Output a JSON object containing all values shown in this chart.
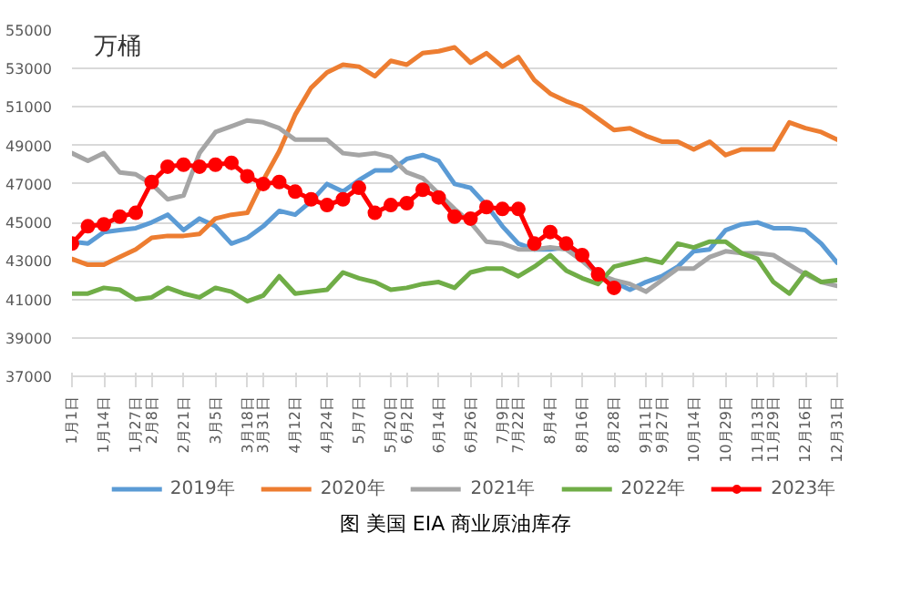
{
  "chart_data": {
    "type": "line",
    "title": "图  美国 EIA 商业原油库存",
    "ylabel": "万桶",
    "categories": [
      "1月1日",
      null,
      "1月14日",
      null,
      "1月27日",
      "2月8日",
      null,
      "2月21日",
      null,
      "3月5日",
      null,
      "3月18日",
      "3月31日",
      null,
      "4月12日",
      null,
      "4月24日",
      null,
      "5月7日",
      null,
      "5月20日",
      "6月2日",
      null,
      "6月14日",
      null,
      "6月26日",
      null,
      "7月9日",
      "7月22日",
      null,
      "8月4日",
      null,
      "8月16日",
      null,
      "8月28日",
      null,
      "9月11日",
      "9月27日",
      null,
      "10月14日",
      null,
      "10月29日",
      null,
      "11月13日",
      "11月29日",
      null,
      "12月16日",
      null,
      "12月31日"
    ],
    "ylim": [
      37000,
      55000
    ],
    "yticks": [
      37000,
      39000,
      41000,
      43000,
      45000,
      47000,
      49000,
      51000,
      53000,
      55000
    ],
    "grid": "y",
    "legend": "bottom",
    "line_style": "solid",
    "series": [
      {
        "name": "2019年",
        "color": "#5b9bd5",
        "marker": "none",
        "values": [
          44000,
          43900,
          44500,
          44600,
          44700,
          45000,
          45400,
          44600,
          45200,
          44800,
          43900,
          44200,
          44800,
          45600,
          45400,
          46100,
          47000,
          46600,
          47200,
          47700,
          47700,
          48300,
          48500,
          48200,
          47000,
          46800,
          45900,
          44800,
          43900,
          43600,
          43600,
          43700,
          43300,
          42300,
          41900,
          41500,
          41900,
          42200,
          42700,
          43500,
          43600,
          44600,
          44900,
          45000,
          44700,
          44700,
          44600,
          43900,
          42900
        ]
      },
      {
        "name": "2020年",
        "color": "#ed7d31",
        "marker": "none",
        "values": [
          43100,
          42800,
          42800,
          43200,
          43600,
          44200,
          44300,
          44300,
          44400,
          45200,
          45400,
          45500,
          47200,
          48700,
          50600,
          52000,
          52800,
          53200,
          53100,
          52600,
          53400,
          53200,
          53800,
          53900,
          54100,
          53300,
          53800,
          53100,
          53600,
          52400,
          51700,
          51300,
          51000,
          50400,
          49800,
          49900,
          49500,
          49200,
          49200,
          48800,
          49200,
          48500,
          48800,
          48800,
          48800,
          50200,
          49900,
          49700,
          49300
        ]
      },
      {
        "name": "2021年",
        "color": "#a5a5a5",
        "marker": "none",
        "values": [
          48600,
          48200,
          48600,
          47600,
          47500,
          47000,
          46200,
          46400,
          48600,
          49700,
          50000,
          50300,
          50200,
          49900,
          49300,
          49300,
          49300,
          48600,
          48500,
          48600,
          48400,
          47600,
          47300,
          46500,
          45700,
          45000,
          44000,
          43900,
          43600,
          43600,
          43700,
          43600,
          43000,
          42300,
          42000,
          41800,
          41400,
          42000,
          42600,
          42600,
          43200,
          43500,
          43400,
          43400,
          43300,
          42800,
          42300,
          41900,
          41700
        ]
      },
      {
        "name": "2022年",
        "color": "#70ad47",
        "marker": "none",
        "values": [
          41300,
          41300,
          41600,
          41500,
          41000,
          41100,
          41600,
          41300,
          41100,
          41600,
          41400,
          40900,
          41200,
          42200,
          41300,
          41400,
          41500,
          42400,
          42100,
          41900,
          41500,
          41600,
          41800,
          41900,
          41600,
          42400,
          42600,
          42600,
          42200,
          42700,
          43300,
          42500,
          42100,
          41800,
          42700,
          42900,
          43100,
          42900,
          43900,
          43700,
          44000,
          44000,
          43400,
          43100,
          41900,
          41300,
          42400,
          41900,
          42000
        ]
      },
      {
        "name": "2023年",
        "color": "#ff0000",
        "marker": "circle",
        "values": [
          43900,
          44800,
          44900,
          45300,
          45500,
          47100,
          47900,
          48000,
          47900,
          48000,
          48100,
          47400,
          47000,
          47100,
          46600,
          46200,
          45900,
          46200,
          46800,
          45500,
          45900,
          46000,
          46700,
          46300,
          45300,
          45200,
          45800,
          45700,
          45700,
          43900,
          44500,
          43900,
          43300,
          42300,
          41600,
          null,
          null,
          null,
          null,
          null,
          null,
          null,
          null,
          null,
          null,
          null,
          null,
          null,
          null
        ]
      }
    ]
  }
}
